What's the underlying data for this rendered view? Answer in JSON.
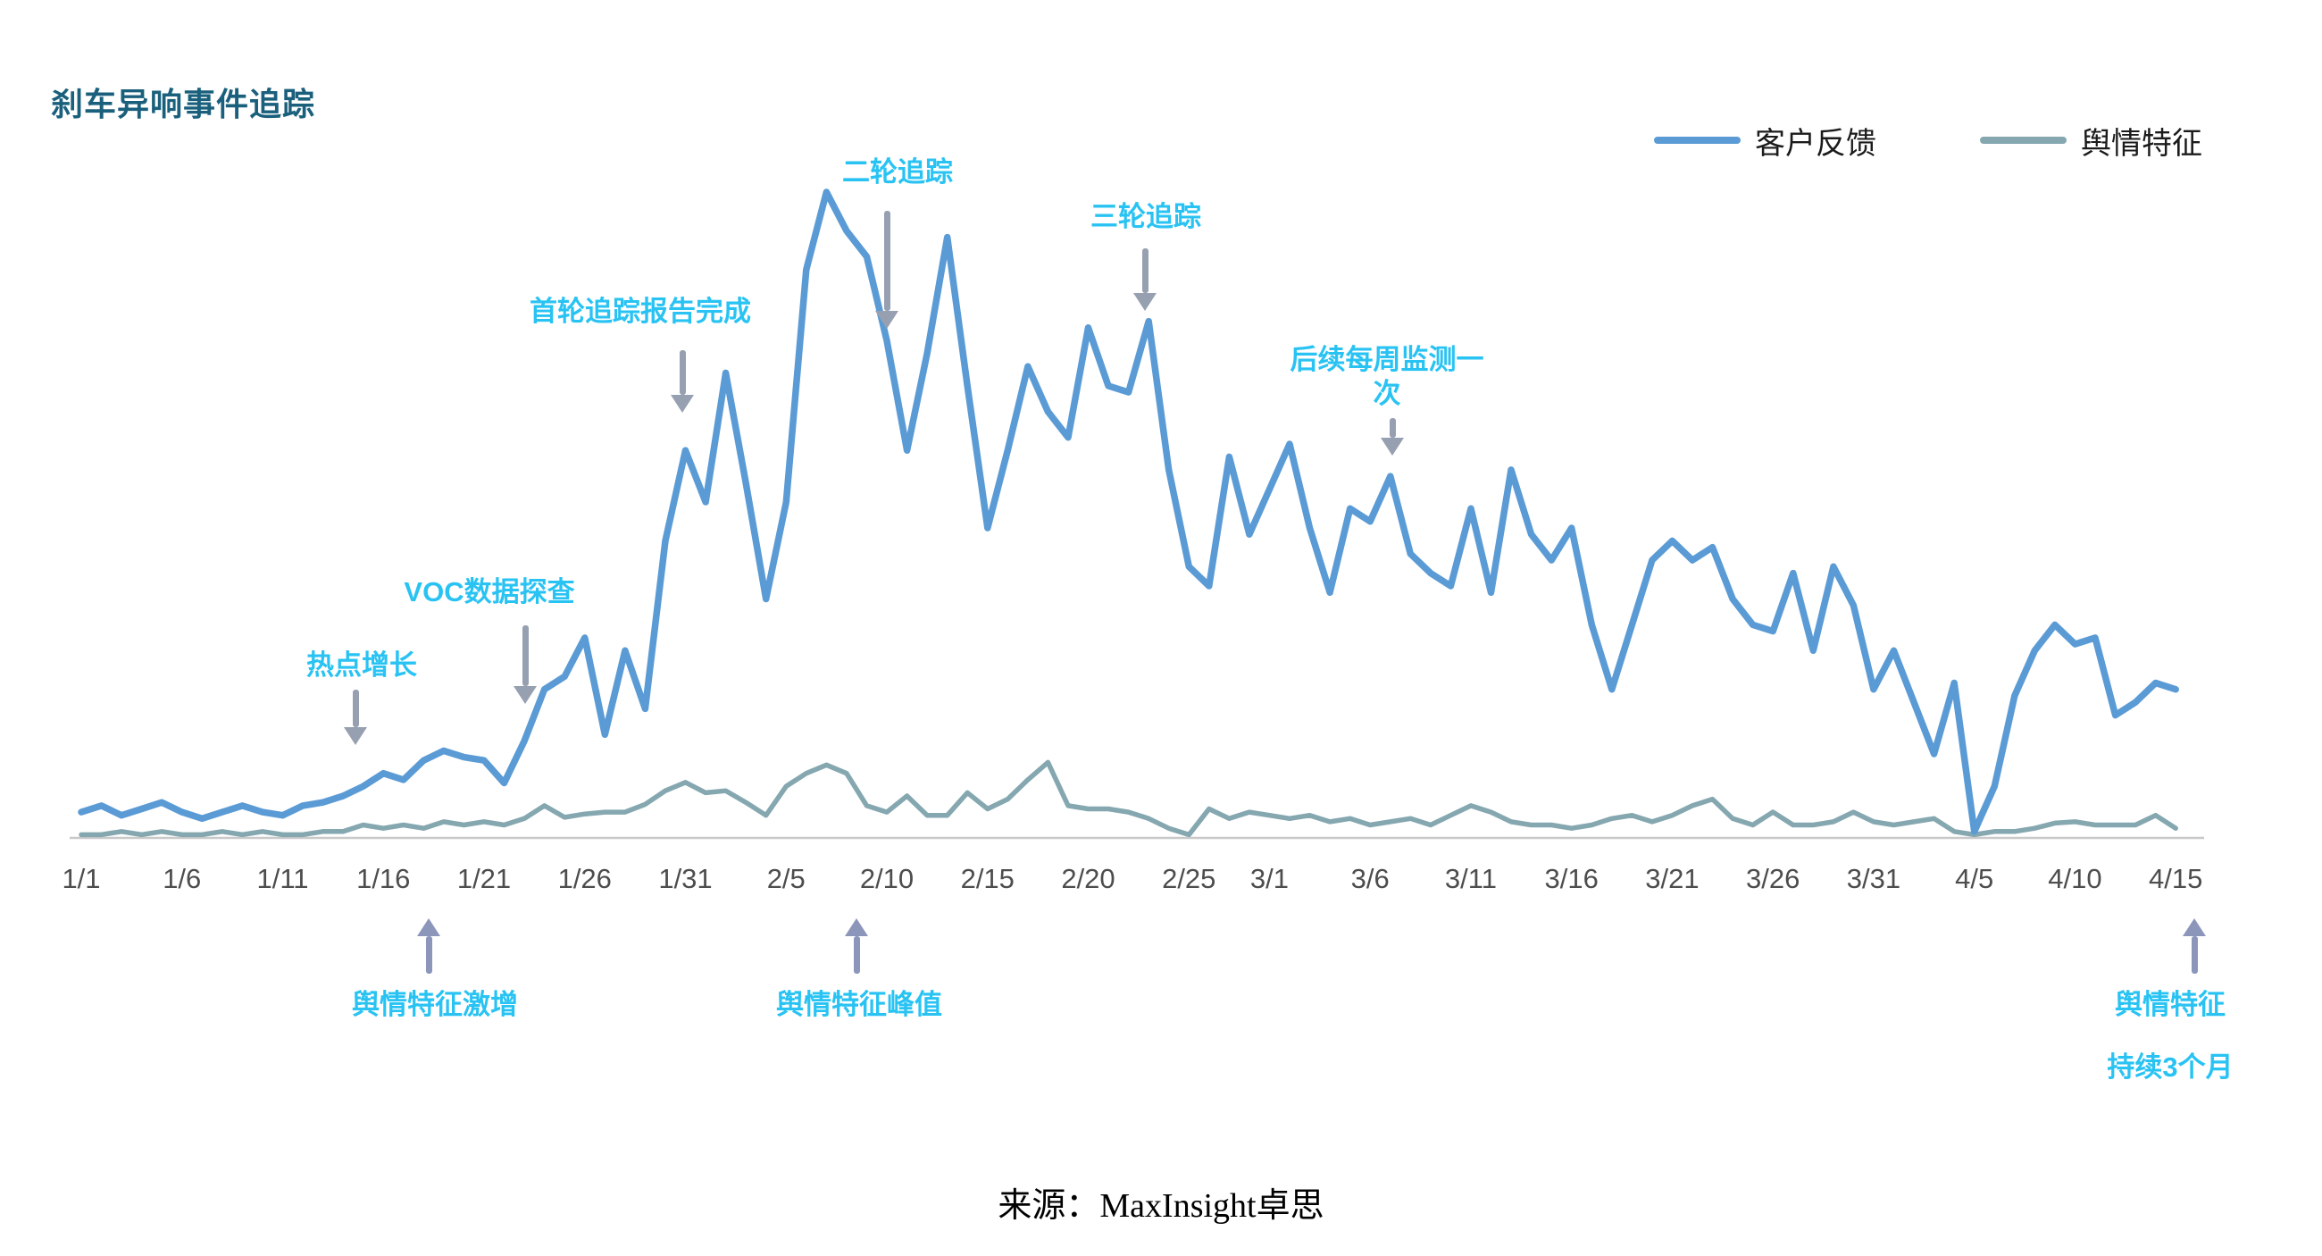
{
  "page": {
    "title": "刹车异响事件追踪",
    "source": "来源：MaxInsight卓思"
  },
  "legend": [
    {
      "label": "客户反馈",
      "color": "#5B9BD5"
    },
    {
      "label": "舆情特征",
      "color": "#85A7B0"
    }
  ],
  "colors": {
    "annotation_cyan": "#29C3F3",
    "title_teal": "#1A607C",
    "arrow_down_gray": "#97A0B1",
    "arrow_up_gray": "#8C96BB",
    "axis_line": "#C9C9C9",
    "tick_text": "#4D4D4D"
  },
  "chart_data": {
    "type": "line",
    "title": "刹车异响事件追踪",
    "xlabel": "",
    "ylabel": "",
    "grid": false,
    "legend_position": "top-right",
    "ylim": [
      0,
      100
    ],
    "x_unit": "day index from 1/1 (daily points, 1/1 - 4/15)",
    "x_range_days": 105,
    "x_tick_labels": [
      {
        "label": "1/1",
        "day": 0
      },
      {
        "label": "1/6",
        "day": 5
      },
      {
        "label": "1/11",
        "day": 10
      },
      {
        "label": "1/16",
        "day": 15
      },
      {
        "label": "1/21",
        "day": 20
      },
      {
        "label": "1/26",
        "day": 25
      },
      {
        "label": "1/31",
        "day": 30
      },
      {
        "label": "2/5",
        "day": 35
      },
      {
        "label": "2/10",
        "day": 40
      },
      {
        "label": "2/15",
        "day": 45
      },
      {
        "label": "2/20",
        "day": 50
      },
      {
        "label": "2/25",
        "day": 55
      },
      {
        "label": "3/1",
        "day": 59
      },
      {
        "label": "3/6",
        "day": 64
      },
      {
        "label": "3/11",
        "day": 69
      },
      {
        "label": "3/16",
        "day": 74
      },
      {
        "label": "3/21",
        "day": 79
      },
      {
        "label": "3/26",
        "day": 84
      },
      {
        "label": "3/31",
        "day": 89
      },
      {
        "label": "4/5",
        "day": 94
      },
      {
        "label": "4/10",
        "day": 99
      },
      {
        "label": "4/15",
        "day": 104
      }
    ],
    "series": [
      {
        "name": "客户反馈",
        "color": "#5B9BD5",
        "values": [
          4,
          5,
          3.5,
          4.5,
          5.5,
          4,
          3,
          4,
          5,
          4,
          3.5,
          5,
          5.5,
          6.5,
          8,
          10,
          9,
          12,
          13.5,
          12.5,
          12,
          8.5,
          15,
          23,
          25,
          31,
          16,
          29,
          20,
          46,
          60,
          52,
          72,
          55,
          37,
          52,
          88,
          100,
          94,
          90,
          77,
          60,
          75,
          93,
          70,
          48,
          60,
          73,
          66,
          62,
          79,
          70,
          69,
          80,
          57,
          42,
          39,
          59,
          47,
          54,
          61,
          48,
          38,
          51,
          49,
          56,
          44,
          41,
          39,
          51,
          38,
          57,
          47,
          43,
          48,
          33,
          23,
          33,
          43,
          46,
          43,
          45,
          37,
          33,
          32,
          41,
          29,
          42,
          36,
          23,
          29,
          21,
          13,
          24,
          1,
          8,
          22,
          29,
          33,
          30,
          31,
          19,
          21,
          24,
          23
        ]
      },
      {
        "name": "舆情特征",
        "color": "#85A7B0",
        "values": [
          0.5,
          0.5,
          1,
          0.5,
          1,
          0.5,
          0.5,
          1,
          0.5,
          1,
          0.5,
          0.5,
          1,
          1,
          2,
          1.5,
          2,
          1.5,
          2.5,
          2,
          2.5,
          2,
          3,
          5,
          3.2,
          3.7,
          4,
          4,
          5.2,
          7.3,
          8.6,
          7,
          7.3,
          5.5,
          3.5,
          8,
          10,
          11.3,
          10,
          5,
          4,
          6.5,
          3.5,
          3.5,
          7,
          4.5,
          6,
          9,
          11.7,
          5,
          4.5,
          4.5,
          4,
          3,
          1.5,
          0.5,
          4.5,
          3,
          4,
          3.5,
          3,
          3.5,
          2.5,
          3,
          2,
          2.5,
          3,
          2,
          3.5,
          5,
          4,
          2.5,
          2,
          2,
          1.5,
          2,
          3,
          3.5,
          2.5,
          3.5,
          5,
          6,
          3,
          2,
          4,
          2,
          2,
          2.5,
          4,
          2.5,
          2,
          2.5,
          3,
          1,
          0.5,
          1,
          1,
          1.5,
          2.3,
          2.5,
          2,
          2,
          2,
          3.5,
          1.5
        ]
      }
    ],
    "annotations": [
      {
        "label": "热点增长",
        "day": 14,
        "direction": "down"
      },
      {
        "label": "VOC数据探查",
        "day": 22,
        "direction": "down"
      },
      {
        "label": "首轮追踪报告完成",
        "day": 30,
        "direction": "down"
      },
      {
        "label": "二轮追踪",
        "day": 40,
        "direction": "down"
      },
      {
        "label": "三轮追踪",
        "day": 53,
        "direction": "down"
      },
      {
        "label": "后续每周监测一次",
        "day": 65,
        "direction": "down"
      },
      {
        "label": "舆情特征激增",
        "day": 17,
        "direction": "up"
      },
      {
        "label": "舆情特征峰值",
        "day": 38,
        "direction": "up"
      },
      {
        "label": "舆情特征",
        "label2": "持续3个月",
        "day": 104,
        "direction": "up"
      }
    ]
  }
}
